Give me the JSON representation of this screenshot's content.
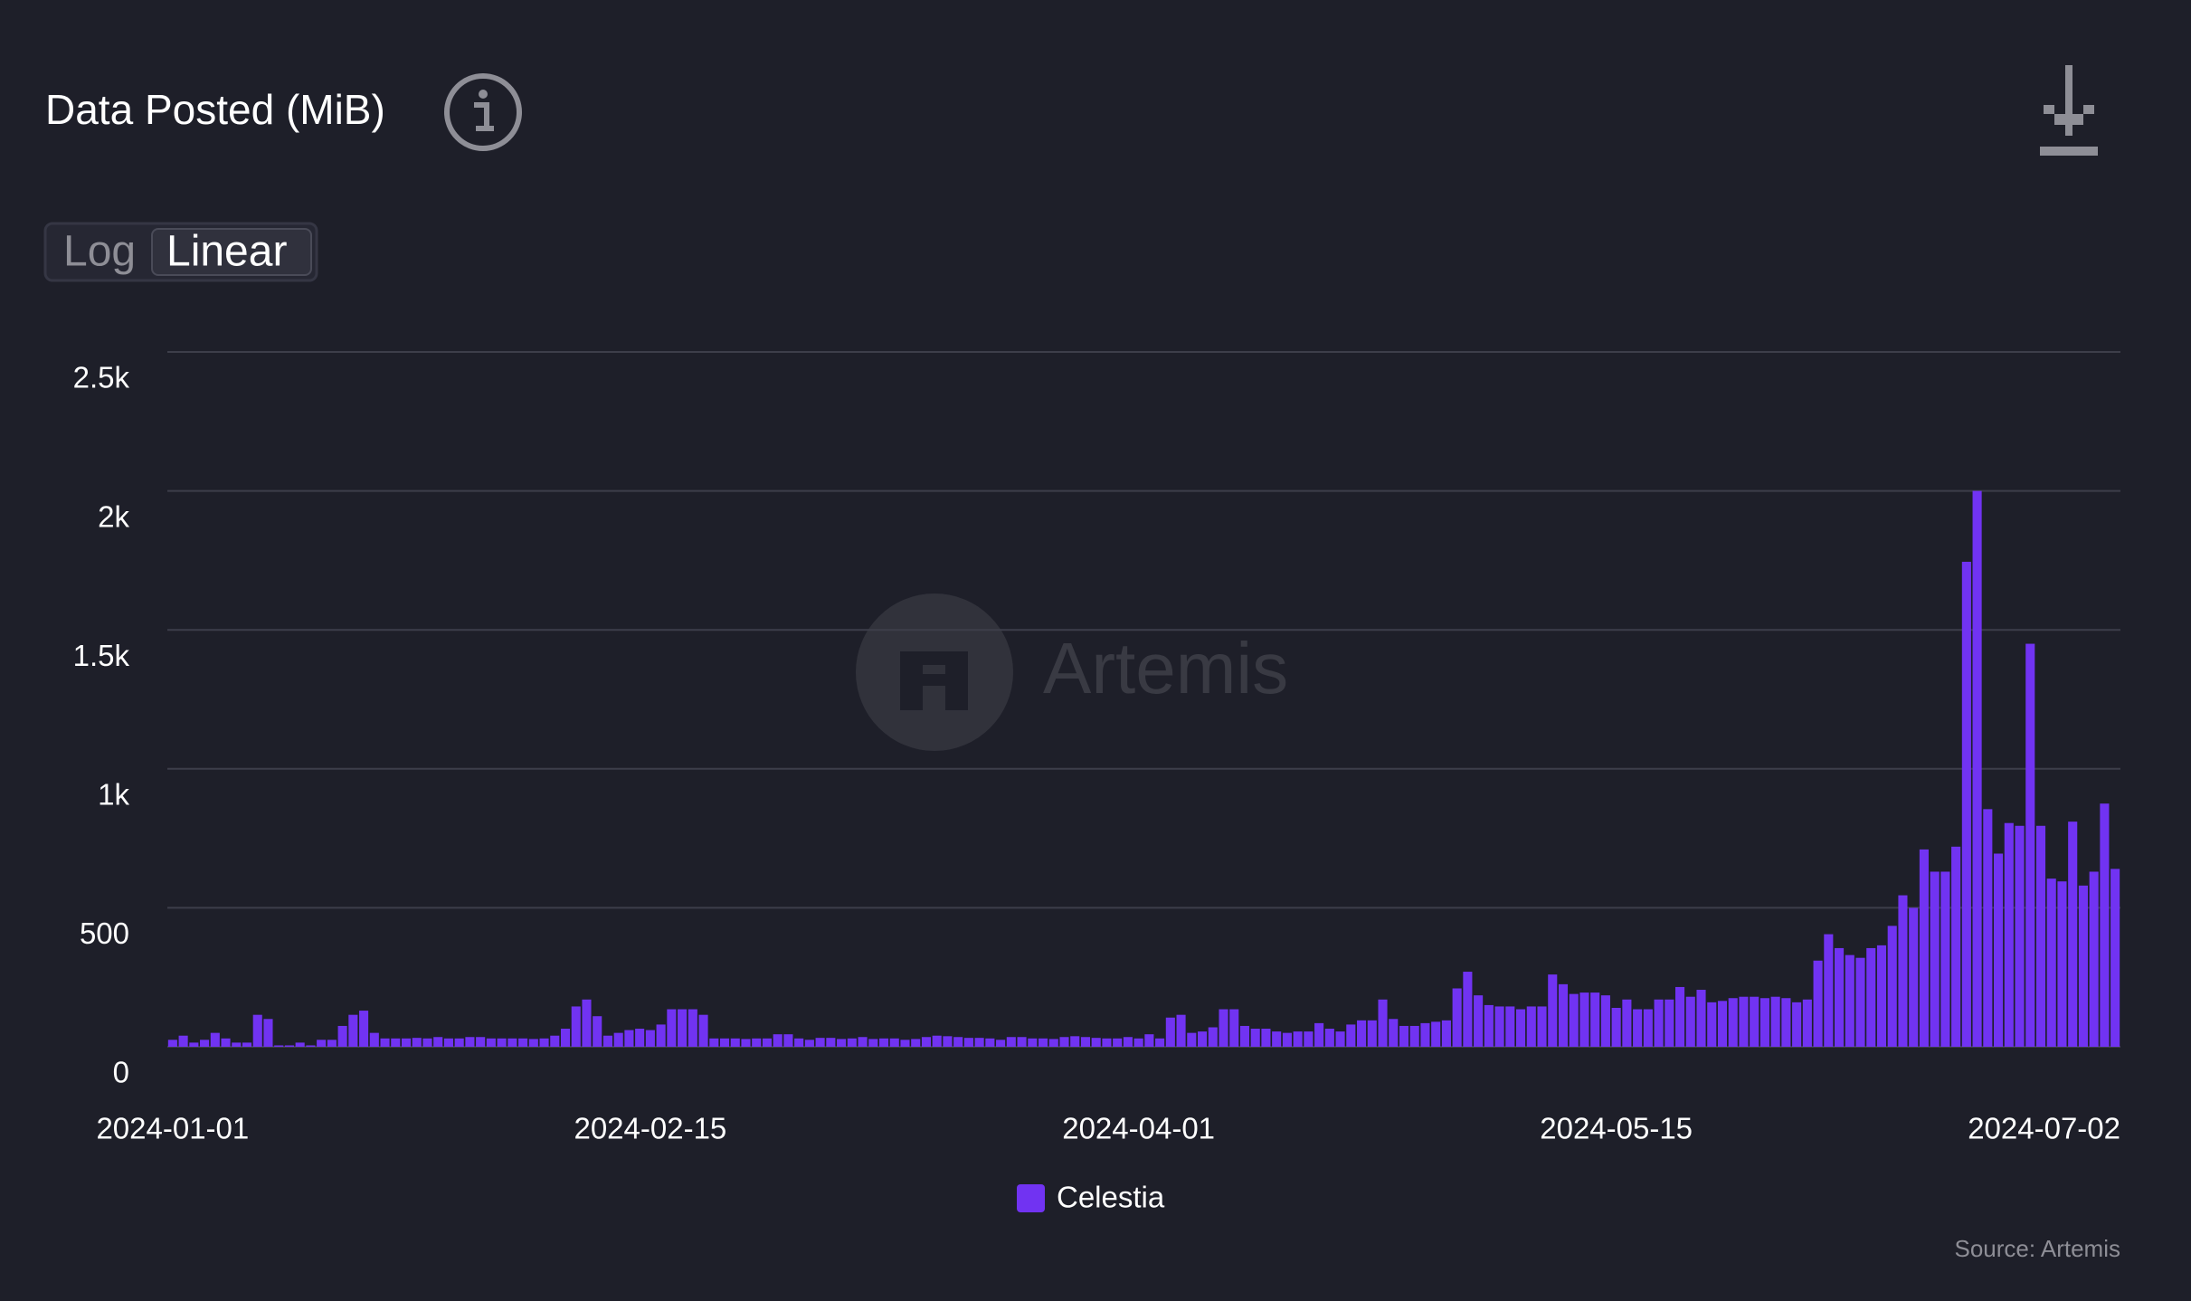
{
  "chart_data": {
    "type": "bar",
    "title": "Data Posted (MiB)",
    "toggle": [
      "Log",
      "Linear"
    ],
    "log_scale": false,
    "watermark": "Artemis",
    "source": "Source: Artemis",
    "grid": true,
    "legend": "bottom",
    "categories": [
      "2024-01-01",
      null,
      null,
      null,
      null,
      null,
      null,
      null,
      null,
      null,
      null,
      null,
      null,
      null,
      null,
      null,
      null,
      null,
      null,
      null,
      null,
      null,
      null,
      null,
      null,
      null,
      null,
      null,
      null,
      null,
      null,
      null,
      null,
      null,
      null,
      null,
      null,
      null,
      null,
      null,
      null,
      null,
      null,
      null,
      null,
      "2024-02-15",
      null,
      null,
      null,
      null,
      null,
      null,
      null,
      null,
      null,
      null,
      null,
      null,
      null,
      null,
      null,
      null,
      null,
      null,
      null,
      null,
      null,
      null,
      null,
      null,
      null,
      null,
      null,
      null,
      null,
      null,
      null,
      null,
      null,
      null,
      null,
      null,
      null,
      null,
      null,
      null,
      null,
      null,
      null,
      null,
      null,
      "2024-04-01",
      null,
      null,
      null,
      null,
      null,
      null,
      null,
      null,
      null,
      null,
      null,
      null,
      null,
      null,
      null,
      null,
      null,
      null,
      null,
      null,
      null,
      null,
      null,
      null,
      null,
      null,
      null,
      null,
      null,
      null,
      null,
      null,
      null,
      null,
      null,
      null,
      null,
      null,
      null,
      null,
      null,
      null,
      null,
      null,
      "2024-05-15",
      null,
      null,
      null,
      null,
      null,
      null,
      null,
      null,
      null,
      null,
      null,
      null,
      null,
      null,
      null,
      null,
      null,
      null,
      null,
      null,
      null,
      null,
      null,
      null,
      null,
      null,
      null,
      null,
      null,
      null,
      null,
      null,
      null,
      null,
      null,
      null,
      null,
      null,
      null,
      null,
      null,
      null,
      null,
      null,
      null,
      null,
      "2024-07-02"
    ],
    "series": [
      {
        "name": "Celestia",
        "color": "#7133f2",
        "values": [
          25,
          40,
          15,
          25,
          50,
          30,
          15,
          15,
          115,
          100,
          5,
          5,
          15,
          5,
          25,
          25,
          75,
          115,
          130,
          50,
          30,
          30,
          30,
          32,
          30,
          35,
          30,
          30,
          35,
          35,
          30,
          30,
          30,
          30,
          28,
          30,
          40,
          65,
          145,
          170,
          110,
          40,
          50,
          60,
          65,
          60,
          80,
          135,
          135,
          135,
          115,
          30,
          30,
          30,
          28,
          30,
          30,
          45,
          45,
          30,
          25,
          32,
          32,
          28,
          30,
          35,
          28,
          30,
          30,
          25,
          28,
          35,
          40,
          38,
          35,
          32,
          32,
          30,
          25,
          35,
          35,
          30,
          30,
          28,
          35,
          38,
          35,
          32,
          30,
          30,
          35,
          30,
          45,
          30,
          105,
          115,
          50,
          55,
          70,
          135,
          135,
          75,
          65,
          65,
          55,
          50,
          55,
          55,
          85,
          65,
          55,
          80,
          95,
          95,
          170,
          100,
          75,
          75,
          85,
          90,
          95,
          210,
          270,
          185,
          150,
          145,
          145,
          135,
          145,
          145,
          260,
          225,
          190,
          195,
          195,
          185,
          140,
          170,
          135,
          135,
          170,
          170,
          215,
          180,
          205,
          160,
          165,
          175,
          180,
          180,
          175,
          180,
          175,
          160,
          170,
          310,
          405,
          355,
          330,
          320,
          355,
          365,
          435,
          545,
          500,
          710,
          630,
          630,
          720,
          1745,
          2000,
          855,
          695,
          805,
          795,
          1450,
          795,
          605,
          595,
          810,
          580,
          630,
          875,
          640
        ]
      }
    ],
    "ylim": [
      0,
      2500
    ],
    "yticks": [
      0,
      500,
      {
        "value": 1000,
        "label": "1k"
      },
      {
        "value": 1500,
        "label": "1.5k"
      },
      {
        "value": 2000,
        "label": "2k"
      },
      {
        "value": 2500,
        "label": "2.5k"
      }
    ]
  }
}
